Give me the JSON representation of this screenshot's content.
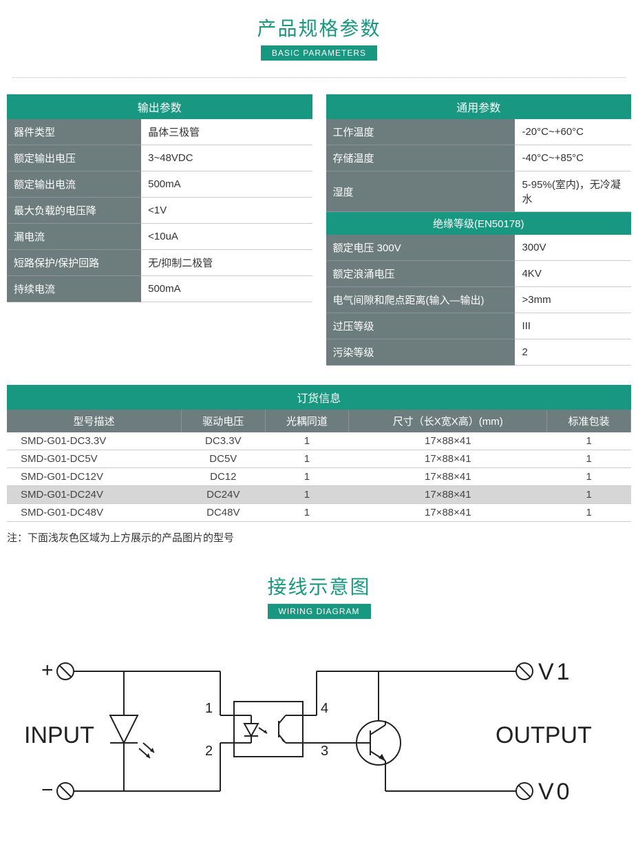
{
  "colors": {
    "teal": "#189880",
    "tealDark": "#0f8a72",
    "headerGray": "#6d7c7c",
    "rowBorder": "#cccccc",
    "highlightRow": "#d6d6d6",
    "text": "#333333",
    "white": "#ffffff"
  },
  "section1": {
    "titleCn": "产品规格参数",
    "titleEn": "BASIC PARAMETERS"
  },
  "outputParams": {
    "header": "输出参数",
    "rows": [
      {
        "label": "器件类型",
        "value": "晶体三极管"
      },
      {
        "label": "额定输出电压",
        "value": "3~48VDC"
      },
      {
        "label": "额定输出电流",
        "value": "500mA"
      },
      {
        "label": "最大负载的电压降",
        "value": "<1V"
      },
      {
        "label": "漏电流",
        "value": "<10uA"
      },
      {
        "label": "短路保护/保护回路",
        "value": "无/抑制二极管"
      },
      {
        "label": "持续电流",
        "value": "500mA"
      }
    ]
  },
  "generalParams": {
    "header": "通用参数",
    "rows1": [
      {
        "label": "工作温度",
        "value": "-20°C~+60°C"
      },
      {
        "label": "存储温度",
        "value": "-40°C~+85°C"
      },
      {
        "label": "湿度",
        "value": "5-95%(室内)，无冷凝水"
      }
    ],
    "subheader": "绝缘等级(EN50178)",
    "rows2": [
      {
        "label": "额定电压 300V",
        "value": "300V"
      },
      {
        "label": "额定浪涌电压",
        "value": "4KV"
      },
      {
        "label": "电气间隙和爬点距离(输入—输出)",
        "value": ">3mm"
      },
      {
        "label": "过压等级",
        "value": "III"
      },
      {
        "label": "污染等级",
        "value": "2"
      }
    ]
  },
  "orderInfo": {
    "header": "订货信息",
    "columns": [
      "型号描述",
      "驱动电压",
      "光耦同道",
      "尺寸（长X宽X高）(mm)",
      "标准包装"
    ],
    "rows": [
      {
        "cells": [
          "SMD-G01-DC3.3V",
          "DC3.3V",
          "1",
          "17×88×41",
          "1"
        ],
        "highlight": false
      },
      {
        "cells": [
          "SMD-G01-DC5V",
          "DC5V",
          "1",
          "17×88×41",
          "1"
        ],
        "highlight": false
      },
      {
        "cells": [
          "SMD-G01-DC12V",
          "DC12",
          "1",
          "17×88×41",
          "1"
        ],
        "highlight": false
      },
      {
        "cells": [
          "SMD-G01-DC24V",
          "DC24V",
          "1",
          "17×88×41",
          "1"
        ],
        "highlight": true
      },
      {
        "cells": [
          "SMD-G01-DC48V",
          "DC48V",
          "1",
          "17×88×41",
          "1"
        ],
        "highlight": false
      }
    ]
  },
  "note": "注：下面浅灰色区域为上方展示的产品图片的型号",
  "section2": {
    "titleCn": "接线示意图",
    "titleEn": "WIRING DIAGRAM"
  },
  "diagram": {
    "labels": {
      "input": "INPUT",
      "output": "OUTPUT",
      "plus": "+",
      "minus": "−",
      "v1": "V1",
      "v0": "V0",
      "pin1": "1",
      "pin2": "2",
      "pin3": "3",
      "pin4": "4"
    },
    "style": {
      "strokeColor": "#222222",
      "strokeWidth": 2,
      "fontSize": 34,
      "labelFontSize": 20
    }
  }
}
